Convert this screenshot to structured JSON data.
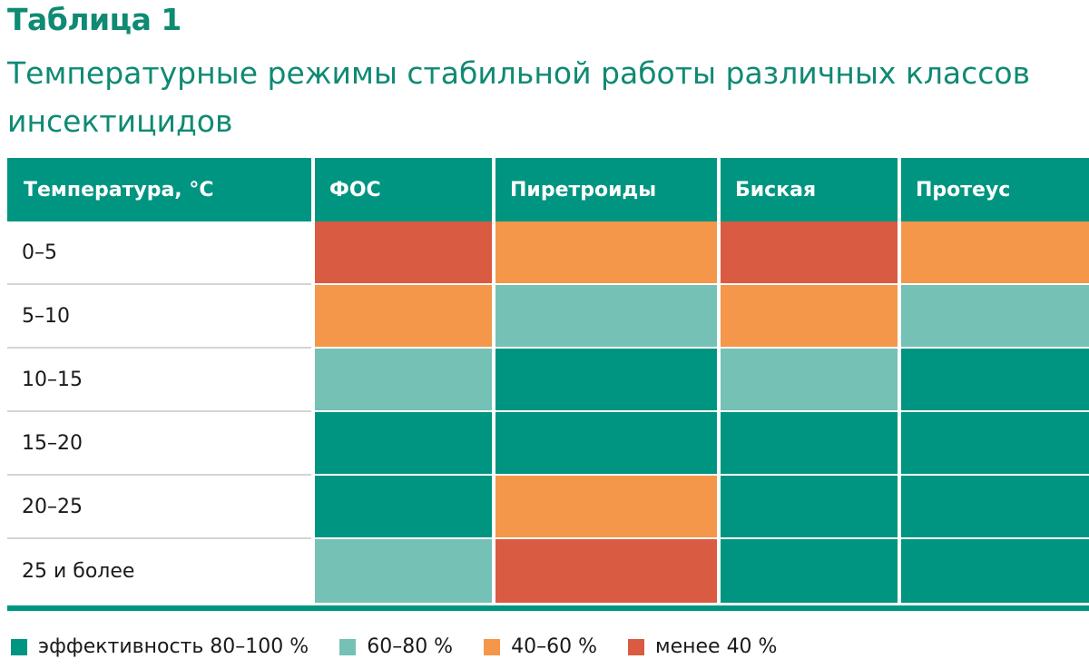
{
  "title": "Таблица 1",
  "subtitle": "Температурные режимы стабильной работы различных классов инсектицидов",
  "colors": {
    "e80_100": "#009580",
    "e60_80": "#75c1b5",
    "e40_60": "#f5974a",
    "less40": "#d95b42"
  },
  "table": {
    "headers": [
      "Температура, °C",
      "ФОС",
      "Пиретроиды",
      "Бискaя",
      "Протеус"
    ],
    "rows": [
      {
        "label": "0–5",
        "cells": [
          "less40",
          "e40_60",
          "less40",
          "e40_60"
        ]
      },
      {
        "label": "5–10",
        "cells": [
          "e40_60",
          "e60_80",
          "e40_60",
          "e60_80"
        ]
      },
      {
        "label": "10–15",
        "cells": [
          "e60_80",
          "e80_100",
          "e60_80",
          "e80_100"
        ]
      },
      {
        "label": "15–20",
        "cells": [
          "e80_100",
          "e80_100",
          "e80_100",
          "e80_100"
        ]
      },
      {
        "label": "20–25",
        "cells": [
          "e80_100",
          "e40_60",
          "e80_100",
          "e80_100"
        ]
      },
      {
        "label": "25 и более",
        "cells": [
          "e60_80",
          "less40",
          "e80_100",
          "e80_100"
        ]
      }
    ]
  },
  "legend": [
    {
      "key": "e80_100",
      "label": "эффективность 80–100 %"
    },
    {
      "key": "e60_80",
      "label": "60–80 %"
    },
    {
      "key": "e40_60",
      "label": "40–60 %"
    },
    {
      "key": "less40",
      "label": "менее 40 %"
    }
  ]
}
